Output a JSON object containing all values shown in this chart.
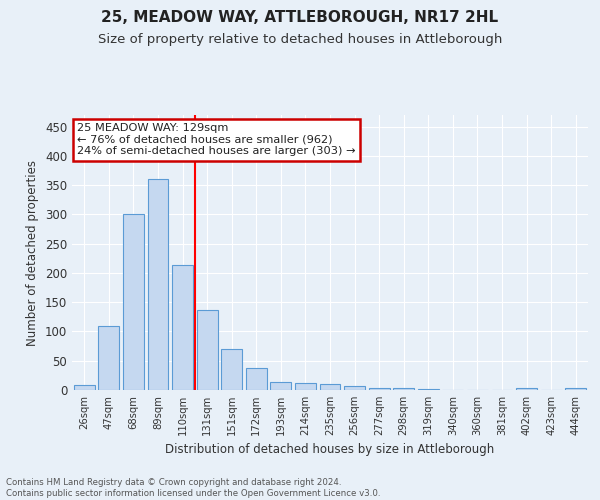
{
  "title": "25, MEADOW WAY, ATTLEBOROUGH, NR17 2HL",
  "subtitle": "Size of property relative to detached houses in Attleborough",
  "xlabel": "Distribution of detached houses by size in Attleborough",
  "ylabel": "Number of detached properties",
  "bar_labels": [
    "26sqm",
    "47sqm",
    "68sqm",
    "89sqm",
    "110sqm",
    "131sqm",
    "151sqm",
    "172sqm",
    "193sqm",
    "214sqm",
    "235sqm",
    "256sqm",
    "277sqm",
    "298sqm",
    "319sqm",
    "340sqm",
    "360sqm",
    "381sqm",
    "402sqm",
    "423sqm",
    "444sqm"
  ],
  "bar_values": [
    9,
    110,
    301,
    360,
    214,
    136,
    70,
    38,
    13,
    12,
    10,
    6,
    4,
    3,
    2,
    0,
    0,
    0,
    4,
    0,
    4
  ],
  "bar_color": "#c5d8f0",
  "bar_edge_color": "#5b9bd5",
  "annotation_text": "25 MEADOW WAY: 129sqm\n← 76% of detached houses are smaller (962)\n24% of semi-detached houses are larger (303) →",
  "annotation_box_color": "#ffffff",
  "annotation_box_edge_color": "#cc0000",
  "footnote": "Contains HM Land Registry data © Crown copyright and database right 2024.\nContains public sector information licensed under the Open Government Licence v3.0.",
  "ylim": [
    0,
    470
  ],
  "yticks": [
    0,
    50,
    100,
    150,
    200,
    250,
    300,
    350,
    400,
    450
  ],
  "bg_color": "#e8f0f8",
  "grid_color": "#ffffff",
  "title_fontsize": 11,
  "subtitle_fontsize": 9.5,
  "red_line_x": 4.5
}
